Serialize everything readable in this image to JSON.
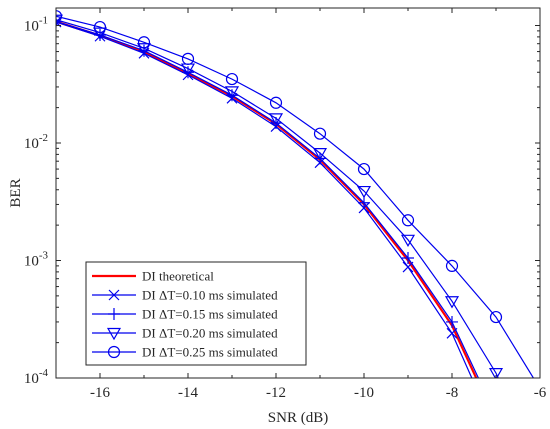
{
  "chart_data": {
    "type": "line",
    "xlabel": "SNR (dB)",
    "ylabel": "BER",
    "xlim": [
      -17,
      -6
    ],
    "ylim": [
      0.0001,
      0.15
    ],
    "yscale": "log",
    "grid": false,
    "legend_position": "bottom-left",
    "x_ticks": [
      -16,
      -14,
      -12,
      -10,
      -8,
      -6
    ],
    "x_tick_labels": [
      "-16",
      "-14",
      "-12",
      "-10",
      "-8",
      "-6"
    ],
    "y_ticks": [
      0.0001,
      0.001,
      0.01,
      0.1
    ],
    "y_tick_labels": [
      {
        "base": "10",
        "exp": "-4"
      },
      {
        "base": "10",
        "exp": "-3"
      },
      {
        "base": "10",
        "exp": "-2"
      },
      {
        "base": "10",
        "exp": "-1"
      }
    ],
    "series": [
      {
        "name": "DI theoretical",
        "color": "#ff0000",
        "marker": "none",
        "line_width": 2.2,
        "points": [
          [
            -17,
            0.108
          ],
          [
            -16,
            0.082
          ],
          [
            -15,
            0.06
          ],
          [
            -14,
            0.039
          ],
          [
            -13,
            0.025
          ],
          [
            -12,
            0.0145
          ],
          [
            -11,
            0.0072
          ],
          [
            -10,
            0.003
          ],
          [
            -9,
            0.001
          ],
          [
            -8,
            0.00028
          ],
          [
            -7.45,
            0.0001
          ]
        ]
      },
      {
        "name": "DI ΔT=0.10 ms simulated",
        "color": "#0000ee",
        "marker": "x",
        "points": [
          [
            -17,
            0.107
          ],
          [
            -16,
            0.081
          ],
          [
            -15,
            0.058
          ],
          [
            -14,
            0.038
          ],
          [
            -13,
            0.024
          ],
          [
            -12,
            0.0138
          ],
          [
            -11,
            0.0068
          ],
          [
            -10,
            0.0028
          ],
          [
            -9,
            0.00088
          ],
          [
            -8,
            0.00024
          ],
          [
            -7.55,
            0.0001
          ]
        ]
      },
      {
        "name": "DI ΔT=0.15 ms simulated",
        "color": "#0000ee",
        "marker": "+",
        "points": [
          [
            -17,
            0.108
          ],
          [
            -16,
            0.083
          ],
          [
            -15,
            0.061
          ],
          [
            -14,
            0.04
          ],
          [
            -13,
            0.0255
          ],
          [
            -12,
            0.0148
          ],
          [
            -11,
            0.0074
          ],
          [
            -10,
            0.0031
          ],
          [
            -9,
            0.00105
          ],
          [
            -8,
            0.0003
          ],
          [
            -7.4,
            0.0001
          ]
        ]
      },
      {
        "name": "DI ΔT=0.20 ms simulated",
        "color": "#0000ee",
        "marker": "triangle-down",
        "points": [
          [
            -17,
            0.112
          ],
          [
            -16,
            0.087
          ],
          [
            -15,
            0.064
          ],
          [
            -14,
            0.043
          ],
          [
            -13,
            0.0275
          ],
          [
            -12,
            0.0162
          ],
          [
            -11,
            0.0082
          ],
          [
            -10,
            0.0039
          ],
          [
            -9,
            0.0015
          ],
          [
            -8,
            0.00045
          ],
          [
            -7,
            0.00011
          ],
          [
            -6.95,
            0.0001
          ]
        ]
      },
      {
        "name": "DI ΔT=0.25 ms simulated",
        "color": "#0000ee",
        "marker": "circle",
        "points": [
          [
            -17,
            0.12
          ],
          [
            -16,
            0.097
          ],
          [
            -15,
            0.072
          ],
          [
            -14,
            0.052
          ],
          [
            -13,
            0.035
          ],
          [
            -12,
            0.022
          ],
          [
            -11,
            0.012
          ],
          [
            -10,
            0.006
          ],
          [
            -9,
            0.0022
          ],
          [
            -8,
            0.0009
          ],
          [
            -7,
            0.00033
          ],
          [
            -6.15,
            0.0001
          ]
        ]
      }
    ]
  }
}
